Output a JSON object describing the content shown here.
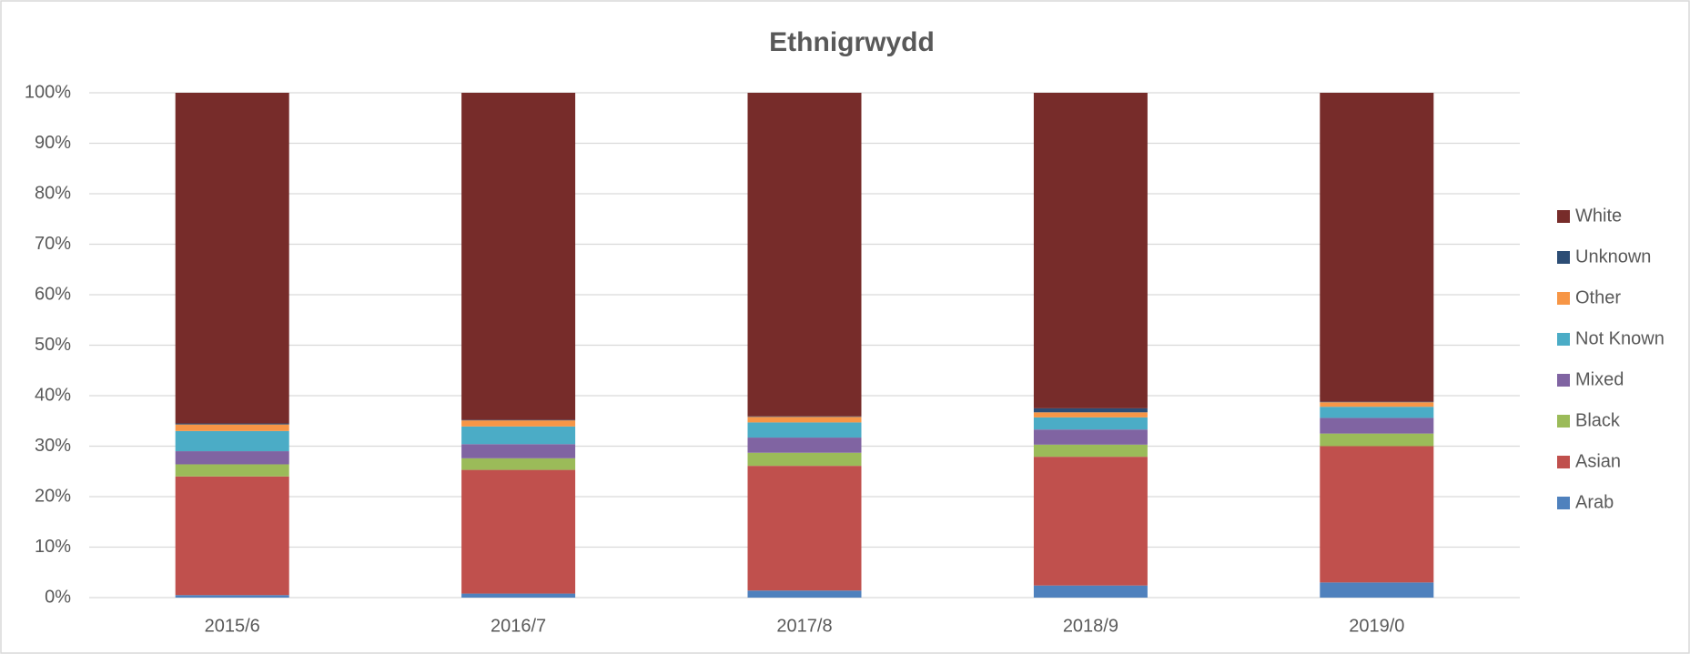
{
  "chart_data": {
    "type": "stacked_bar_100",
    "title": "Ethnigrwydd",
    "categories": [
      "2015/6",
      "2016/7",
      "2017/8",
      "2018/9",
      "2019/0"
    ],
    "series": [
      {
        "name": "Arab",
        "color": "#4f81bd",
        "values": [
          0.5,
          0.8,
          1.4,
          2.4,
          3
        ]
      },
      {
        "name": "Asian",
        "color": "#c0504d",
        "values": [
          23.5,
          24.5,
          24.7,
          25.5,
          27
        ]
      },
      {
        "name": "Black",
        "color": "#9bbb59",
        "values": [
          2.4,
          2.3,
          2.6,
          2.4,
          2.5
        ]
      },
      {
        "name": "Mixed",
        "color": "#8064a2",
        "values": [
          2.6,
          2.8,
          3,
          3,
          3.1
        ]
      },
      {
        "name": "Not Known",
        "color": "#4bacc6",
        "values": [
          4,
          3.5,
          3,
          2.4,
          2.2
        ]
      },
      {
        "name": "Other",
        "color": "#f79646",
        "values": [
          1.3,
          1.2,
          1.1,
          1,
          0.9
        ]
      },
      {
        "name": "Unknown",
        "color": "#2c4d75",
        "values": [
          0.2,
          0.1,
          0.1,
          0.8,
          0.1
        ]
      },
      {
        "name": "White",
        "color": "#772c2a",
        "values": [
          65.5,
          64.8,
          64.1,
          62.5,
          61.2
        ]
      }
    ],
    "ylim": [
      0,
      100
    ],
    "yticks": [
      {
        "value": 0,
        "label": "0%"
      },
      {
        "value": 10,
        "label": "10%"
      },
      {
        "value": 20,
        "label": "20%"
      },
      {
        "value": 30,
        "label": "30%"
      },
      {
        "value": 40,
        "label": "40%"
      },
      {
        "value": 50,
        "label": "50%"
      },
      {
        "value": 60,
        "label": "60%"
      },
      {
        "value": 70,
        "label": "70%"
      },
      {
        "value": 80,
        "label": "80%"
      },
      {
        "value": 90,
        "label": "90%"
      },
      {
        "value": 100,
        "label": "100%"
      }
    ],
    "grid": true,
    "legend": "right"
  }
}
